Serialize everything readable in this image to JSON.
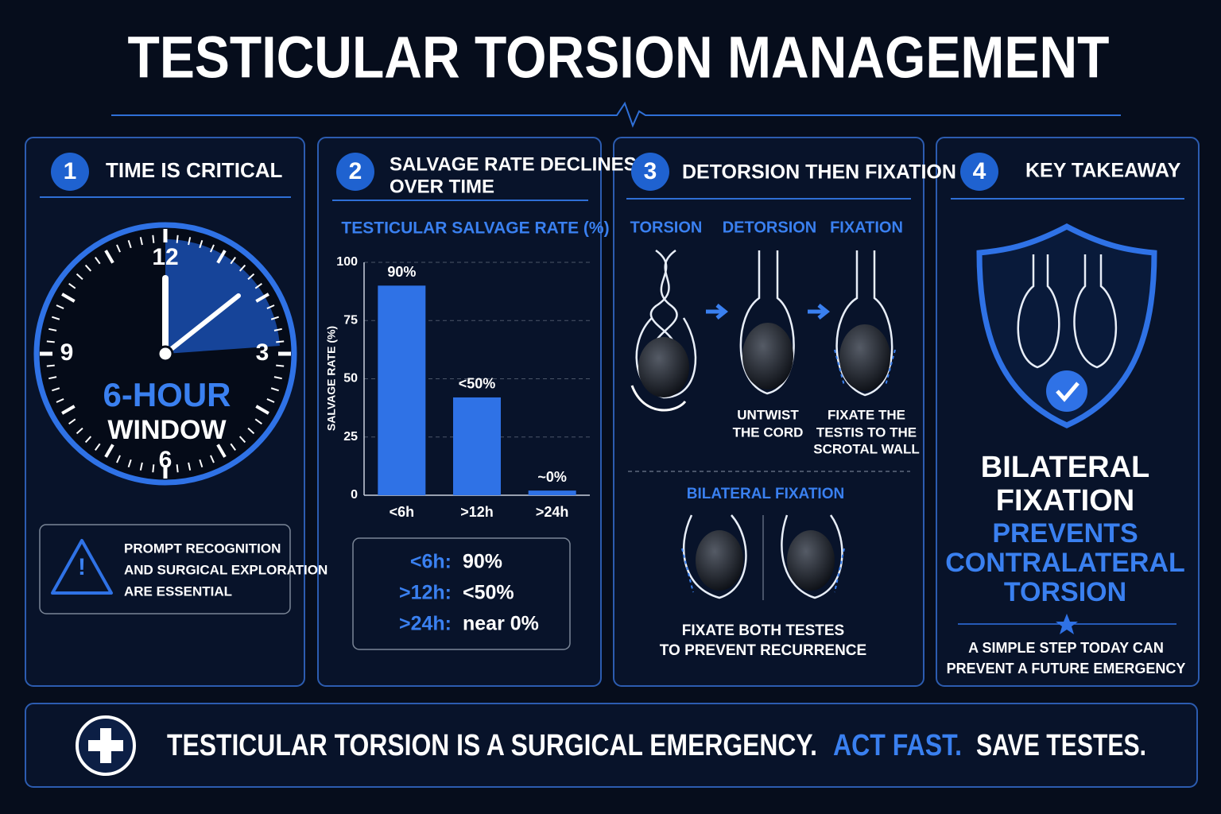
{
  "title": "TESTICULAR TORSION MANAGEMENT",
  "panels": [
    {
      "number": "1",
      "heading": [
        "TIME IS CRITICAL"
      ],
      "clock_numbers": [
        "12",
        "3",
        "6",
        "9"
      ],
      "window": [
        "6-HOUR",
        "WINDOW"
      ],
      "note": [
        "PROMPT RECOGNITION",
        "AND SURGICAL EXPLORATION",
        "ARE ESSENTIAL"
      ]
    },
    {
      "number": "2",
      "heading": [
        "SALVAGE RATE DECLINES",
        "OVER TIME"
      ],
      "summary": [
        [
          "<6h:",
          "90%"
        ],
        [
          ">12h:",
          "<50%"
        ],
        [
          ">24h:",
          "near 0%"
        ]
      ]
    },
    {
      "number": "3",
      "heading": [
        "DETORSION THEN FIXATION"
      ],
      "steps": [
        "TORSION",
        "DETORSION",
        "FIXATION"
      ],
      "captions": [
        [
          "UNTWIST",
          "THE CORD"
        ],
        [
          "FIXATE THE",
          "TESTIS TO THE",
          "SCROTAL WALL"
        ]
      ],
      "bilateral_title": "BILATERAL FIXATION",
      "bilateral_caption": [
        "FIXATE BOTH TESTES",
        "TO PREVENT RECURRENCE"
      ]
    },
    {
      "number": "4",
      "heading": [
        "KEY TAKEAWAY"
      ],
      "message_white": [
        "BILATERAL",
        "FIXATION"
      ],
      "message_blue": [
        "PREVENTS",
        "CONTRALATERAL",
        "TORSION"
      ],
      "footer": [
        "A SIMPLE STEP TODAY CAN",
        "PREVENT A FUTURE EMERGENCY"
      ]
    }
  ],
  "banner": [
    "TESTICULAR TORSION IS A SURGICAL EMERGENCY.",
    "ACT FAST.",
    "SAVE TESTES."
  ],
  "chart_data": {
    "type": "bar",
    "title": "TESTICULAR SALVAGE RATE (%)",
    "y_label": "SALVAGE RATE (%)",
    "categories": [
      "<6h",
      ">12h",
      ">24h"
    ],
    "values": [
      90,
      42,
      2
    ],
    "value_labels": [
      "90%",
      "<50%",
      "~0%"
    ],
    "color": "#2f72e6",
    "ylim": [
      0,
      100
    ],
    "yticks": [
      0,
      25,
      50,
      75,
      100
    ],
    "grid": true
  }
}
